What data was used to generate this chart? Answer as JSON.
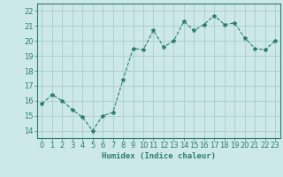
{
  "x": [
    0,
    1,
    2,
    3,
    4,
    5,
    6,
    7,
    8,
    9,
    10,
    11,
    12,
    13,
    14,
    15,
    16,
    17,
    18,
    19,
    20,
    21,
    22,
    23
  ],
  "y": [
    15.8,
    16.4,
    16.0,
    15.4,
    14.9,
    14.0,
    15.0,
    15.2,
    17.4,
    19.5,
    19.4,
    20.7,
    19.6,
    20.0,
    21.3,
    20.7,
    21.1,
    21.7,
    21.1,
    21.2,
    20.2,
    19.5,
    19.4,
    20.0
  ],
  "line_color": "#2e7d6e",
  "marker": "*",
  "marker_size": 3,
  "bg_color": "#cce8e8",
  "grid_color": "#aacccc",
  "xlabel": "Humidex (Indice chaleur)",
  "ylim": [
    13.5,
    22.5
  ],
  "xlim": [
    -0.5,
    23.5
  ],
  "yticks": [
    14,
    15,
    16,
    17,
    18,
    19,
    20,
    21,
    22
  ],
  "xticks": [
    0,
    1,
    2,
    3,
    4,
    5,
    6,
    7,
    8,
    9,
    10,
    11,
    12,
    13,
    14,
    15,
    16,
    17,
    18,
    19,
    20,
    21,
    22,
    23
  ],
  "xlabel_fontsize": 6.5,
  "tick_fontsize": 6
}
